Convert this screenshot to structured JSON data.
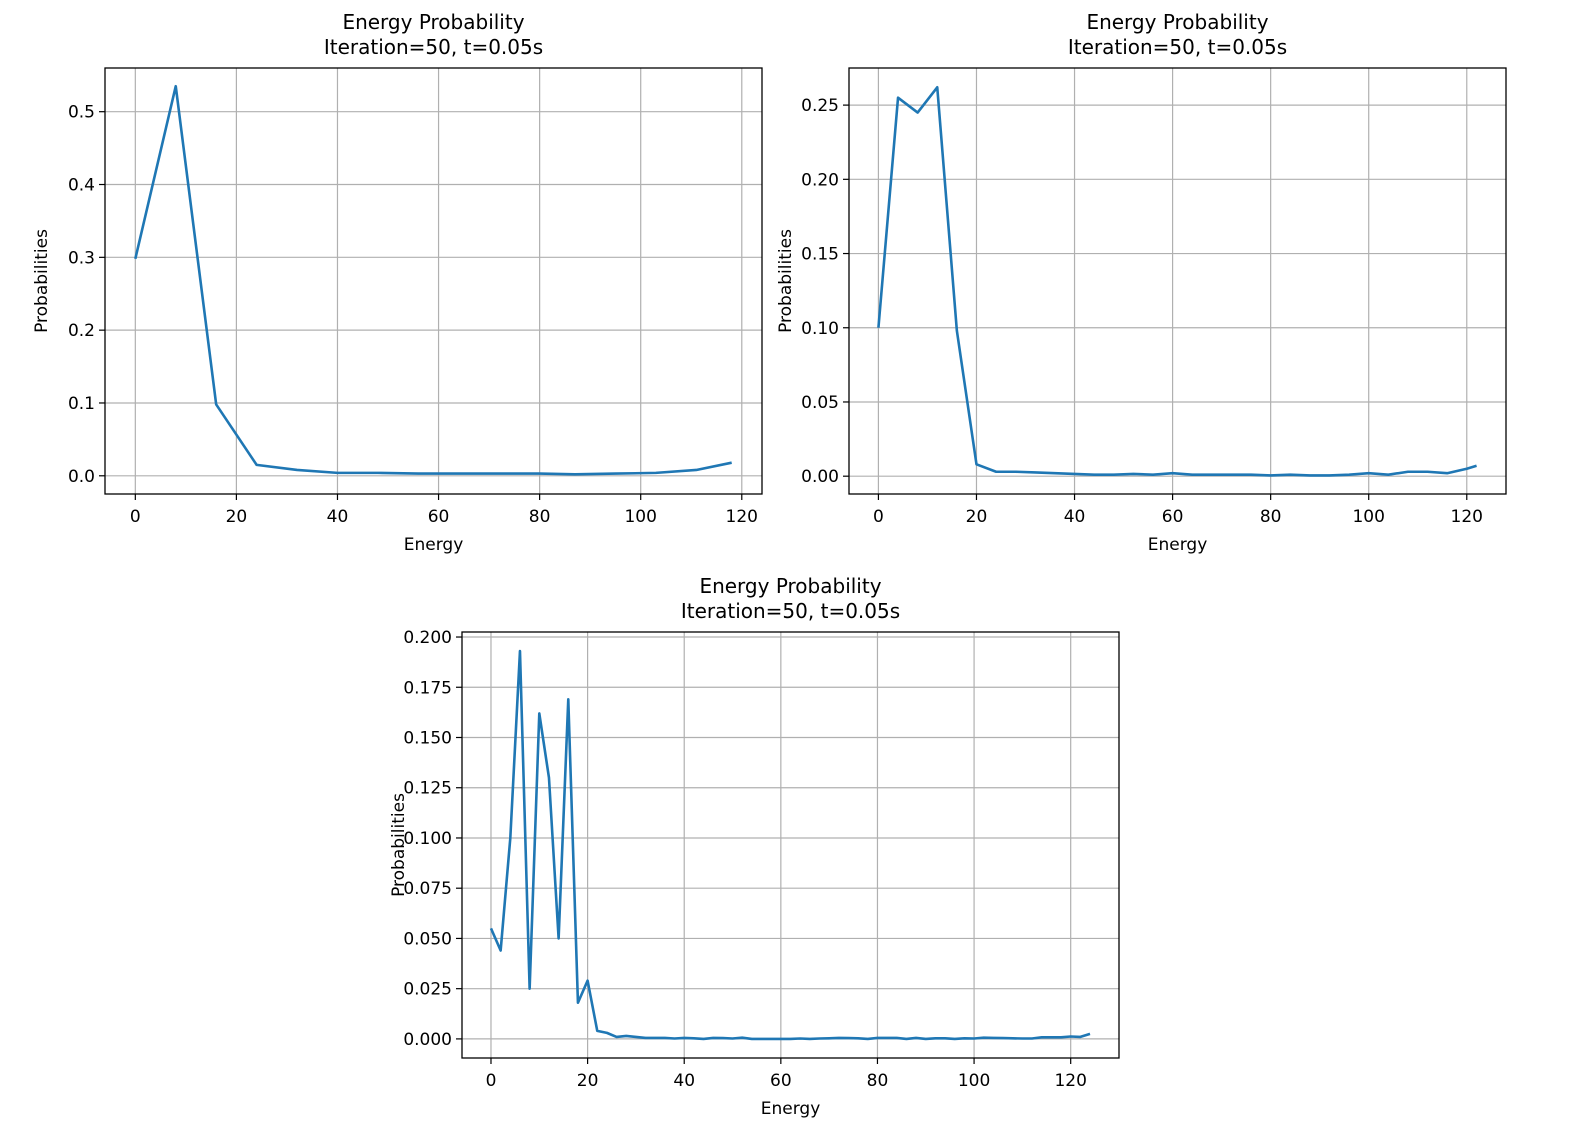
{
  "chart_data": [
    {
      "type": "line",
      "title": "Energy Probability",
      "subtitle": "Iteration=50, t=0.05s",
      "xlabel": "Energy",
      "ylabel": "Probabilities",
      "xlim": [
        -6,
        124
      ],
      "ylim": [
        -0.025,
        0.56
      ],
      "xticks": [
        0,
        20,
        40,
        60,
        80,
        100,
        120
      ],
      "yticks": [
        0.0,
        0.1,
        0.2,
        0.3,
        0.4,
        0.5
      ],
      "ytick_labels": [
        "0.0",
        "0.1",
        "0.2",
        "0.3",
        "0.4",
        "0.5"
      ],
      "grid": true,
      "line_color": "#1f77b4",
      "x": [
        0,
        8,
        16,
        24,
        32,
        40,
        48,
        56,
        64,
        72,
        80,
        87,
        95,
        103,
        111,
        118
      ],
      "y": [
        0.298,
        0.535,
        0.098,
        0.015,
        0.008,
        0.004,
        0.004,
        0.003,
        0.003,
        0.003,
        0.003,
        0.002,
        0.003,
        0.004,
        0.008,
        0.018
      ]
    },
    {
      "type": "line",
      "title": "Energy Probability",
      "subtitle": "Iteration=50, t=0.05s",
      "xlabel": "Energy",
      "ylabel": "Probabilities",
      "xlim": [
        -6,
        128
      ],
      "ylim": [
        -0.012,
        0.275
      ],
      "xticks": [
        0,
        20,
        40,
        60,
        80,
        100,
        120
      ],
      "yticks": [
        0.0,
        0.05,
        0.1,
        0.15,
        0.2,
        0.25
      ],
      "ytick_labels": [
        "0.00",
        "0.05",
        "0.10",
        "0.15",
        "0.20",
        "0.25"
      ],
      "grid": true,
      "line_color": "#1f77b4",
      "x": [
        0,
        4,
        8,
        12,
        16,
        20,
        24,
        28,
        32,
        36,
        40,
        44,
        48,
        52,
        56,
        60,
        64,
        68,
        72,
        76,
        80,
        84,
        88,
        92,
        96,
        100,
        104,
        108,
        112,
        116,
        120,
        122
      ],
      "y": [
        0.1,
        0.255,
        0.245,
        0.262,
        0.098,
        0.008,
        0.003,
        0.003,
        0.0025,
        0.002,
        0.0015,
        0.001,
        0.001,
        0.0015,
        0.001,
        0.002,
        0.001,
        0.001,
        0.001,
        0.001,
        0.0005,
        0.001,
        0.0005,
        0.0005,
        0.001,
        0.002,
        0.001,
        0.003,
        0.003,
        0.002,
        0.005,
        0.007
      ]
    },
    {
      "type": "line",
      "title": "Energy Probability",
      "subtitle": "Iteration=50, t=0.05s",
      "xlabel": "Energy",
      "ylabel": "Probabilities",
      "xlim": [
        -6,
        130
      ],
      "ylim": [
        -0.0095,
        0.2025
      ],
      "xticks": [
        0,
        20,
        40,
        60,
        80,
        100,
        120
      ],
      "yticks": [
        0.0,
        0.025,
        0.05,
        0.075,
        0.1,
        0.125,
        0.15,
        0.175,
        0.2
      ],
      "ytick_labels": [
        "0.000",
        "0.025",
        "0.050",
        "0.075",
        "0.100",
        "0.125",
        "0.150",
        "0.175",
        "0.200"
      ],
      "grid": true,
      "line_color": "#1f77b4",
      "x": [
        0,
        2,
        4,
        6,
        8,
        10,
        12,
        14,
        16,
        18,
        20,
        22,
        24,
        26,
        28,
        30,
        32,
        34,
        36,
        38,
        40,
        42,
        44,
        46,
        48,
        50,
        52,
        54,
        56,
        58,
        60,
        62,
        64,
        66,
        68,
        70,
        72,
        74,
        76,
        78,
        80,
        82,
        84,
        86,
        88,
        90,
        92,
        94,
        96,
        98,
        100,
        102,
        104,
        106,
        108,
        110,
        112,
        114,
        116,
        118,
        120,
        122,
        124
      ],
      "y": [
        0.055,
        0.044,
        0.1,
        0.193,
        0.025,
        0.162,
        0.13,
        0.05,
        0.169,
        0.018,
        0.029,
        0.004,
        0.003,
        0.001,
        0.0015,
        0.001,
        0.0005,
        0.0005,
        0.0005,
        0.0002,
        0.0005,
        0.0003,
        0.0,
        0.0005,
        0.0004,
        0.0002,
        0.0006,
        0.0,
        0.0,
        0.0,
        0.0,
        0.0,
        0.0002,
        0.0,
        0.0002,
        0.0003,
        0.0005,
        0.0004,
        0.0003,
        0.0,
        0.0005,
        0.0005,
        0.0005,
        0.0,
        0.0005,
        0.0,
        0.0003,
        0.0003,
        0.0,
        0.0003,
        0.0002,
        0.0006,
        0.0005,
        0.0004,
        0.0003,
        0.0002,
        0.0002,
        0.0008,
        0.0008,
        0.0008,
        0.0012,
        0.001,
        0.0025
      ]
    }
  ]
}
